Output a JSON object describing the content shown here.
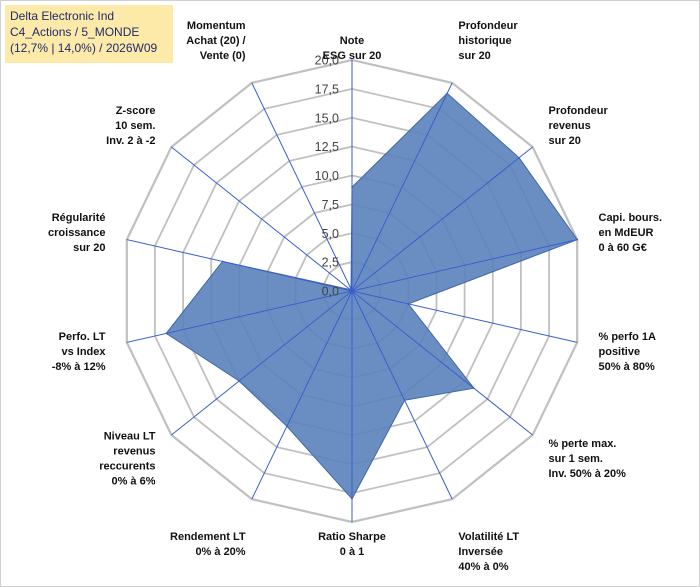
{
  "title": {
    "line1": "Delta Electronic Ind",
    "line2": "C4_Actions / 5_MONDE",
    "line3": "(12,7% | 14,0%) / 2026W09"
  },
  "colors": {
    "fill": "#5b82bb",
    "fill_stroke": "#3f66a8",
    "grid": "#c0c0c0",
    "axis": "#3a5fcd",
    "title_bg": "#fde9a8",
    "title_text": "#1f2d6b"
  },
  "chart_data": {
    "type": "radar",
    "title": "Delta Electronic Ind",
    "rlim": [
      0,
      20
    ],
    "ticks": [
      "0,0",
      "2,5",
      "5,0",
      "7,5",
      "10,0",
      "12,5",
      "15,0",
      "17,5",
      "20,0"
    ],
    "categories": [
      [
        "Note",
        "ESG sur 20"
      ],
      [
        "Profondeur",
        "historique",
        "sur 20"
      ],
      [
        "Profondeur",
        "revenus",
        "sur 20"
      ],
      [
        "Capi. bours.",
        "en MdEUR",
        "0 à 60 G€"
      ],
      [
        "% perfo 1A",
        "positive",
        "50% à 80%"
      ],
      [
        "% perte max.",
        "sur 1 sem.",
        "Inv. 50% à 20%"
      ],
      [
        "Volatilité LT",
        "Inversée",
        "40% à 0%"
      ],
      [
        "Ratio Sharpe",
        "0 à 1"
      ],
      [
        "Rendement LT",
        "0% à 20%"
      ],
      [
        "Niveau LT",
        "revenus",
        "reccurents",
        "0% à 6%"
      ],
      [
        "Perfo. LT",
        "vs Index",
        "-8% à 12%"
      ],
      [
        "Régularité",
        "croissance",
        "sur 20"
      ],
      [
        "Z-score",
        "10 sem.",
        "Inv. 2 à -2"
      ],
      [
        "Momentum",
        "Achat (20) /",
        "Vente (0)"
      ]
    ],
    "series": [
      {
        "name": "Delta Electronic Ind",
        "values": [
          9.0,
          19.0,
          18.5,
          20.0,
          5.0,
          13.5,
          10.5,
          18.0,
          13.0,
          12.5,
          16.5,
          11.5,
          0.2,
          0.2
        ]
      }
    ],
    "grid": true,
    "legend": "none"
  }
}
